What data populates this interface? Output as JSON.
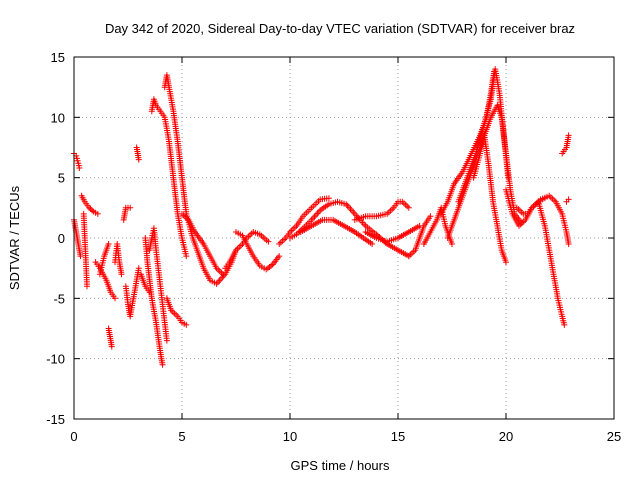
{
  "chart_data": {
    "type": "scatter",
    "title": "Day 342 of 2020, Sidereal Day-to-day VTEC variation (SDTVAR) for receiver braz",
    "xlabel": "GPS time / hours",
    "ylabel": "SDTVAR / TECUs",
    "xlim": [
      0,
      25
    ],
    "ylim": [
      -15,
      15
    ],
    "xticks": [
      "0",
      "5",
      "10",
      "15",
      "20",
      "25"
    ],
    "yticks": [
      "-15",
      "-10",
      "-5",
      "0",
      "5",
      "10",
      "15"
    ],
    "grid": true,
    "marker": "+",
    "marker_color": "#ff0000",
    "series": [
      {
        "name": "SDTVAR",
        "color": "#ff0000",
        "tracks": [
          [
            [
              0.0,
              7.0
            ],
            [
              0.1,
              6.8
            ],
            [
              0.2,
              6.2
            ],
            [
              0.25,
              5.8
            ]
          ],
          [
            [
              0.0,
              1.5
            ],
            [
              0.1,
              0.5
            ],
            [
              0.2,
              -0.5
            ],
            [
              0.3,
              -1.5
            ]
          ],
          [
            [
              0.35,
              3.5
            ],
            [
              0.5,
              3.0
            ],
            [
              0.7,
              2.5
            ],
            [
              0.9,
              2.2
            ],
            [
              1.1,
              2.0
            ]
          ],
          [
            [
              0.45,
              2.0
            ],
            [
              0.5,
              0.0
            ],
            [
              0.55,
              -2.0
            ],
            [
              0.6,
              -4.0
            ]
          ],
          [
            [
              1.0,
              -2.0
            ],
            [
              1.2,
              -2.5
            ],
            [
              1.5,
              -3.5
            ],
            [
              1.7,
              -4.5
            ],
            [
              1.9,
              -5.0
            ]
          ],
          [
            [
              1.2,
              -3.0
            ],
            [
              1.4,
              -1.5
            ],
            [
              1.6,
              -0.5
            ]
          ],
          [
            [
              1.6,
              -7.5
            ],
            [
              1.7,
              -8.5
            ],
            [
              1.75,
              -9.0
            ]
          ],
          [
            [
              1.9,
              -2.0
            ],
            [
              2.0,
              -0.5
            ],
            [
              2.1,
              -2.0
            ],
            [
              2.2,
              -3.0
            ]
          ],
          [
            [
              2.3,
              1.5
            ],
            [
              2.4,
              2.5
            ],
            [
              2.6,
              2.5
            ]
          ],
          [
            [
              2.4,
              -4.0
            ],
            [
              2.5,
              -5.5
            ],
            [
              2.6,
              -6.5
            ],
            [
              2.8,
              -4.5
            ],
            [
              3.0,
              -2.5
            ]
          ],
          [
            [
              2.9,
              7.5
            ],
            [
              3.0,
              6.5
            ]
          ],
          [
            [
              3.1,
              -3.0
            ],
            [
              3.3,
              -4.0
            ],
            [
              3.5,
              -4.5
            ]
          ],
          [
            [
              3.3,
              0.0
            ],
            [
              3.4,
              -2.0
            ],
            [
              3.6,
              -5.0
            ],
            [
              3.8,
              -7.0
            ],
            [
              4.0,
              -9.5
            ],
            [
              4.1,
              -10.5
            ]
          ],
          [
            [
              3.5,
              -1.0
            ],
            [
              3.6,
              0.0
            ],
            [
              3.7,
              0.8
            ],
            [
              3.8,
              -1.0
            ],
            [
              3.9,
              -2.5
            ],
            [
              4.0,
              -4.0
            ],
            [
              4.1,
              -5.5
            ],
            [
              4.2,
              -7.0
            ],
            [
              4.3,
              -8.5
            ]
          ],
          [
            [
              3.6,
              10.5
            ],
            [
              3.7,
              11.5
            ],
            [
              3.8,
              11.0
            ],
            [
              4.0,
              10.5
            ],
            [
              4.2,
              10.0
            ],
            [
              4.4,
              8.0
            ],
            [
              4.6,
              5.0
            ],
            [
              4.8,
              2.0
            ],
            [
              5.0,
              0.0
            ],
            [
              5.2,
              -1.5
            ]
          ],
          [
            [
              4.2,
              12.5
            ],
            [
              4.3,
              13.5
            ],
            [
              4.4,
              12.5
            ],
            [
              4.6,
              10.5
            ],
            [
              4.8,
              8.0
            ],
            [
              5.0,
              5.0
            ],
            [
              5.2,
              2.0
            ],
            [
              5.5,
              0.0
            ],
            [
              5.8,
              -1.5
            ],
            [
              6.0,
              -2.5
            ],
            [
              6.3,
              -3.5
            ],
            [
              6.6,
              -3.8
            ],
            [
              7.0,
              -3.0
            ],
            [
              7.3,
              -2.0
            ],
            [
              7.5,
              -1.0
            ]
          ],
          [
            [
              4.3,
              -5.0
            ],
            [
              4.5,
              -6.0
            ],
            [
              4.8,
              -6.5
            ],
            [
              5.0,
              -7.0
            ],
            [
              5.2,
              -7.2
            ]
          ],
          [
            [
              5.0,
              2.0
            ],
            [
              5.3,
              1.5
            ],
            [
              5.6,
              0.5
            ],
            [
              6.0,
              -0.5
            ],
            [
              6.3,
              -1.5
            ],
            [
              6.6,
              -2.5
            ],
            [
              6.9,
              -3.0
            ]
          ],
          [
            [
              7.0,
              -2.5
            ],
            [
              7.2,
              -2.0
            ],
            [
              7.5,
              -1.0
            ],
            [
              7.8,
              -0.5
            ],
            [
              8.0,
              0.0
            ],
            [
              8.3,
              0.5
            ],
            [
              8.6,
              0.3
            ],
            [
              9.0,
              -0.3
            ]
          ],
          [
            [
              7.5,
              0.5
            ],
            [
              7.8,
              0.2
            ],
            [
              8.0,
              -0.5
            ],
            [
              8.3,
              -1.5
            ],
            [
              8.6,
              -2.3
            ],
            [
              8.9,
              -2.6
            ],
            [
              9.2,
              -2.2
            ],
            [
              9.5,
              -1.5
            ]
          ],
          [
            [
              9.5,
              -0.5
            ],
            [
              9.8,
              0.0
            ],
            [
              10.0,
              0.5
            ],
            [
              10.3,
              1.0
            ],
            [
              10.6,
              1.8
            ],
            [
              11.0,
              2.5
            ],
            [
              11.4,
              3.2
            ],
            [
              11.8,
              3.3
            ]
          ],
          [
            [
              10.0,
              0.0
            ],
            [
              10.3,
              0.3
            ],
            [
              10.6,
              0.8
            ],
            [
              11.0,
              1.5
            ],
            [
              11.4,
              2.3
            ],
            [
              11.8,
              2.8
            ],
            [
              12.2,
              3.0
            ],
            [
              12.6,
              2.8
            ],
            [
              13.0,
              2.0
            ],
            [
              13.5,
              1.0
            ],
            [
              14.0,
              0.3
            ],
            [
              14.5,
              -0.5
            ],
            [
              15.0,
              -1.0
            ],
            [
              15.5,
              -1.5
            ]
          ],
          [
            [
              10.5,
              0.5
            ],
            [
              11.0,
              1.0
            ],
            [
              11.5,
              1.5
            ],
            [
              12.0,
              1.5
            ],
            [
              12.5,
              1.0
            ],
            [
              13.0,
              0.5
            ],
            [
              13.4,
              0.0
            ],
            [
              13.8,
              -0.5
            ]
          ],
          [
            [
              13.0,
              1.5
            ],
            [
              13.5,
              1.8
            ],
            [
              14.0,
              1.8
            ],
            [
              14.5,
              2.0
            ],
            [
              14.8,
              2.5
            ],
            [
              15.0,
              3.0
            ],
            [
              15.2,
              3.0
            ],
            [
              15.5,
              2.5
            ]
          ],
          [
            [
              13.5,
              0.5
            ],
            [
              14.0,
              0.0
            ],
            [
              14.5,
              -0.3
            ],
            [
              15.0,
              0.0
            ],
            [
              15.5,
              0.5
            ],
            [
              16.0,
              1.0
            ]
          ],
          [
            [
              15.5,
              -1.5
            ],
            [
              15.8,
              -1.0
            ],
            [
              16.0,
              0.0
            ],
            [
              16.2,
              1.0
            ],
            [
              16.5,
              1.8
            ]
          ],
          [
            [
              16.2,
              -0.5
            ],
            [
              16.5,
              0.5
            ],
            [
              16.8,
              1.5
            ],
            [
              17.0,
              2.5
            ],
            [
              17.2,
              1.0
            ],
            [
              17.5,
              -0.5
            ]
          ],
          [
            [
              17.0,
              2.0
            ],
            [
              17.3,
              3.0
            ],
            [
              17.6,
              4.5
            ],
            [
              18.0,
              5.5
            ],
            [
              18.4,
              7.0
            ],
            [
              18.8,
              8.5
            ],
            [
              19.1,
              10.0
            ],
            [
              19.3,
              12.0
            ],
            [
              19.45,
              13.8
            ]
          ],
          [
            [
              17.3,
              0.0
            ],
            [
              17.6,
              1.5
            ],
            [
              18.0,
              3.5
            ],
            [
              18.5,
              6.0
            ],
            [
              19.0,
              8.5
            ],
            [
              19.3,
              10.0
            ],
            [
              19.6,
              11.0
            ],
            [
              19.8,
              10.0
            ],
            [
              20.0,
              7.0
            ],
            [
              20.2,
              4.0
            ],
            [
              20.4,
              2.0
            ],
            [
              20.7,
              1.3
            ]
          ],
          [
            [
              17.8,
              3.0
            ],
            [
              18.2,
              5.0
            ],
            [
              18.6,
              7.0
            ],
            [
              19.0,
              9.5
            ],
            [
              19.3,
              11.5
            ],
            [
              19.5,
              14.0
            ],
            [
              19.7,
              12.0
            ],
            [
              19.9,
              8.5
            ],
            [
              20.1,
              5.0
            ]
          ],
          [
            [
              18.5,
              5.0
            ],
            [
              18.8,
              7.0
            ],
            [
              19.0,
              8.5
            ],
            [
              19.2,
              6.0
            ],
            [
              19.4,
              3.0
            ],
            [
              19.6,
              1.0
            ],
            [
              19.8,
              -1.0
            ],
            [
              20.0,
              -2.0
            ]
          ],
          [
            [
              20.5,
              2.5
            ],
            [
              20.8,
              2.0
            ],
            [
              21.0,
              2.0
            ],
            [
              21.2,
              2.5
            ],
            [
              21.5,
              3.0
            ],
            [
              21.8,
              3.3
            ]
          ],
          [
            [
              20.0,
              4.0
            ],
            [
              20.3,
              2.0
            ],
            [
              20.6,
              1.0
            ],
            [
              20.9,
              1.5
            ],
            [
              21.2,
              2.5
            ],
            [
              21.6,
              3.2
            ],
            [
              22.0,
              3.5
            ],
            [
              22.3,
              3.0
            ],
            [
              22.6,
              2.0
            ],
            [
              22.8,
              0.5
            ],
            [
              22.9,
              -0.5
            ]
          ],
          [
            [
              21.5,
              3.0
            ],
            [
              21.8,
              1.0
            ],
            [
              22.0,
              -1.0
            ],
            [
              22.2,
              -3.0
            ],
            [
              22.4,
              -5.0
            ],
            [
              22.6,
              -6.5
            ],
            [
              22.7,
              -7.2
            ]
          ],
          [
            [
              22.6,
              7.0
            ],
            [
              22.8,
              7.5
            ],
            [
              22.9,
              8.5
            ]
          ],
          [
            [
              22.8,
              3.0
            ],
            [
              22.9,
              3.2
            ]
          ]
        ]
      }
    ]
  }
}
